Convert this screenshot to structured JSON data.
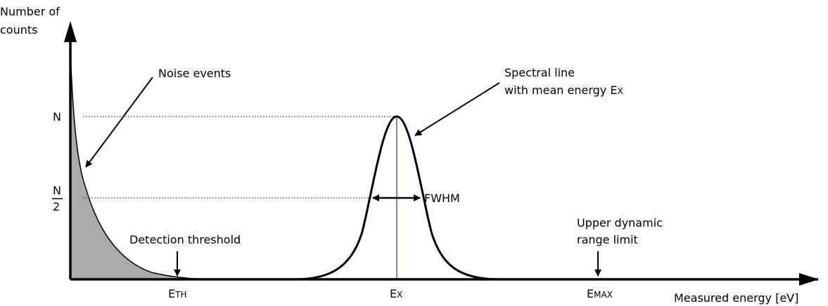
{
  "y_axis_label": {
    "line1": "Number of",
    "line2": "counts"
  },
  "x_axis_label": "Measured energy [eV]",
  "y_ticks": {
    "n": "N",
    "half_numerator": "N",
    "half_denominator": "2"
  },
  "x_ticks": {
    "e_th": {
      "main": "E",
      "sub": "TH"
    },
    "e_x": {
      "main": "E",
      "sub": "X"
    },
    "e_max": {
      "main": "E",
      "sub": "MAX"
    }
  },
  "annotations": {
    "noise_events": "Noise events",
    "spectral_line_1": "Spectral line",
    "spectral_line_2_prefix": "with mean energy ",
    "spectral_line_2_main": "E",
    "spectral_line_2_sub": "X",
    "fwhm": "FWHM",
    "detection_threshold": "Detection threshold",
    "upper_limit_1": "Upper dynamic",
    "upper_limit_2": "range limit"
  },
  "colors": {
    "noise_fill": "#aaaaaa",
    "mean_line": "#3333cc",
    "ink": "#000000"
  }
}
